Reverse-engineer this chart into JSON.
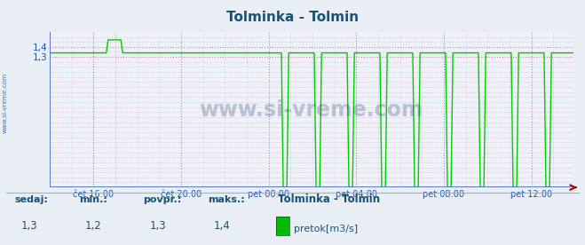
{
  "title": "Tolminka - Tolmin",
  "title_color": "#1a5276",
  "bg_color": "#e8eef4",
  "plot_bg_color": "#eef2f8",
  "grid_h_color": "#d080a0",
  "grid_v_color": "#8899cc",
  "line_color": "#00cc00",
  "axis_color": "#aa0000",
  "tick_color": "#2255aa",
  "watermark": "www.si-vreme.com",
  "watermark_color": "#1a3a6a",
  "ylim_min": 0.0,
  "ylim_max": 1.55,
  "ytick_vals": [
    1.3,
    1.4
  ],
  "ytick_labels": [
    "1,3",
    "1,4"
  ],
  "xtick_labels": [
    "čet 16:00",
    "čet 20:00",
    "pet 00:00",
    "pet 04:00",
    "pet 08:00",
    "pet 12:00"
  ],
  "footer_labels": [
    "sedaj:",
    "min.:",
    "povpr.:",
    "maks.:"
  ],
  "footer_values": [
    "1,3",
    "1,2",
    "1,3",
    "1,4"
  ],
  "footer_station": "Tolminka - Tolmin",
  "footer_legend_color": "#00bb00",
  "footer_legend_label": "pretok[m3/s]",
  "footer_text_color": "#1a5276",
  "left_label": "www.si-vreme.com",
  "left_label_color": "#4477aa"
}
